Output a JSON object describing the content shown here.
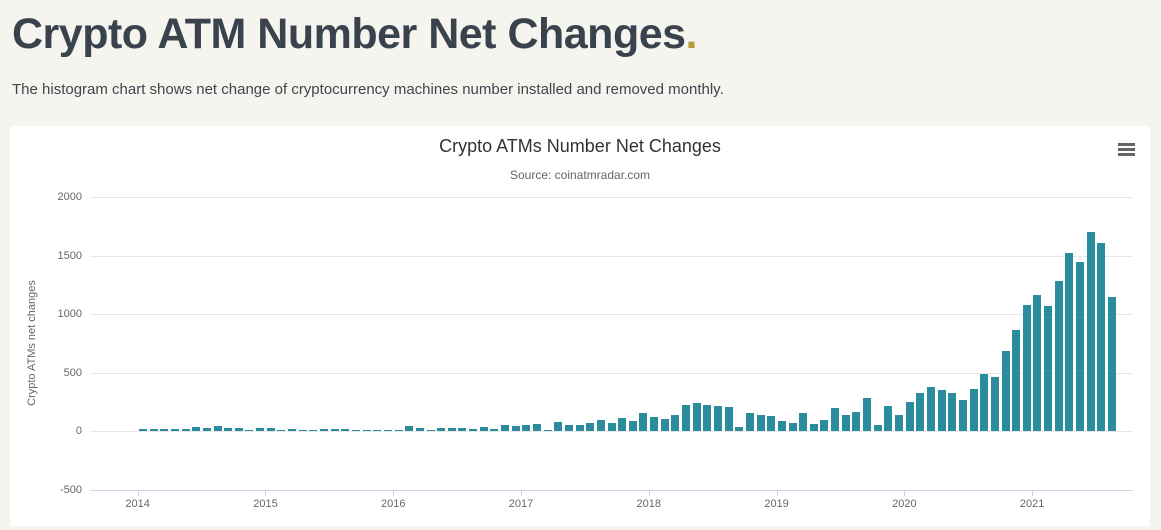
{
  "page": {
    "title": "Crypto ATM Number Net Changes",
    "title_accent": ".",
    "description": "The histogram chart shows net change of cryptocurrency machines number installed and removed monthly.",
    "background_color": "#f6f4ee",
    "title_color": "#3a434d",
    "accent_color": "#b99b3e"
  },
  "chart": {
    "title": "Crypto ATMs Number Net Changes",
    "subtitle": "Source: coinatmradar.com",
    "menu_icon": "hamburger-icon",
    "bar_color": "#2b8c9e",
    "gridline_color": "#e6e6e6",
    "axis_line_color": "#ccd6eb",
    "label_color": "#666666"
  },
  "chart_data": {
    "type": "bar",
    "title": "Crypto ATMs Number Net Changes",
    "subtitle": "Source: coinatmradar.com",
    "xlabel": "",
    "ylabel": "Crypto ATMs net changes",
    "ylim": [
      -500,
      2000
    ],
    "y_ticks": [
      2000,
      1500,
      1000,
      500,
      0,
      -500
    ],
    "x_tick_years": [
      "2014",
      "2015",
      "2016",
      "2017",
      "2018",
      "2019",
      "2020",
      "2021"
    ],
    "grid": true,
    "legend": false,
    "start_month": "2014-01",
    "frequency": "monthly",
    "values": [
      18,
      17,
      17,
      18,
      23,
      37,
      28,
      46,
      28,
      28,
      11,
      28,
      28,
      2,
      17,
      9,
      9,
      23,
      23,
      17,
      2,
      6,
      2,
      6,
      14,
      48,
      31,
      11,
      28,
      28,
      28,
      20,
      37,
      17,
      54,
      43,
      54,
      66,
      14,
      80,
      51,
      51,
      71,
      100,
      71,
      114,
      85,
      155,
      125,
      110,
      143,
      228,
      242,
      222,
      214,
      208,
      37,
      160,
      137,
      131,
      88,
      71,
      157,
      66,
      94,
      197,
      143,
      163,
      283,
      57,
      220,
      140,
      250,
      325,
      379,
      356,
      331,
      268,
      365,
      490,
      465,
      684,
      864,
      1077,
      1163,
      1072,
      1283,
      1519,
      1448,
      1704,
      1605,
      1145
    ]
  }
}
